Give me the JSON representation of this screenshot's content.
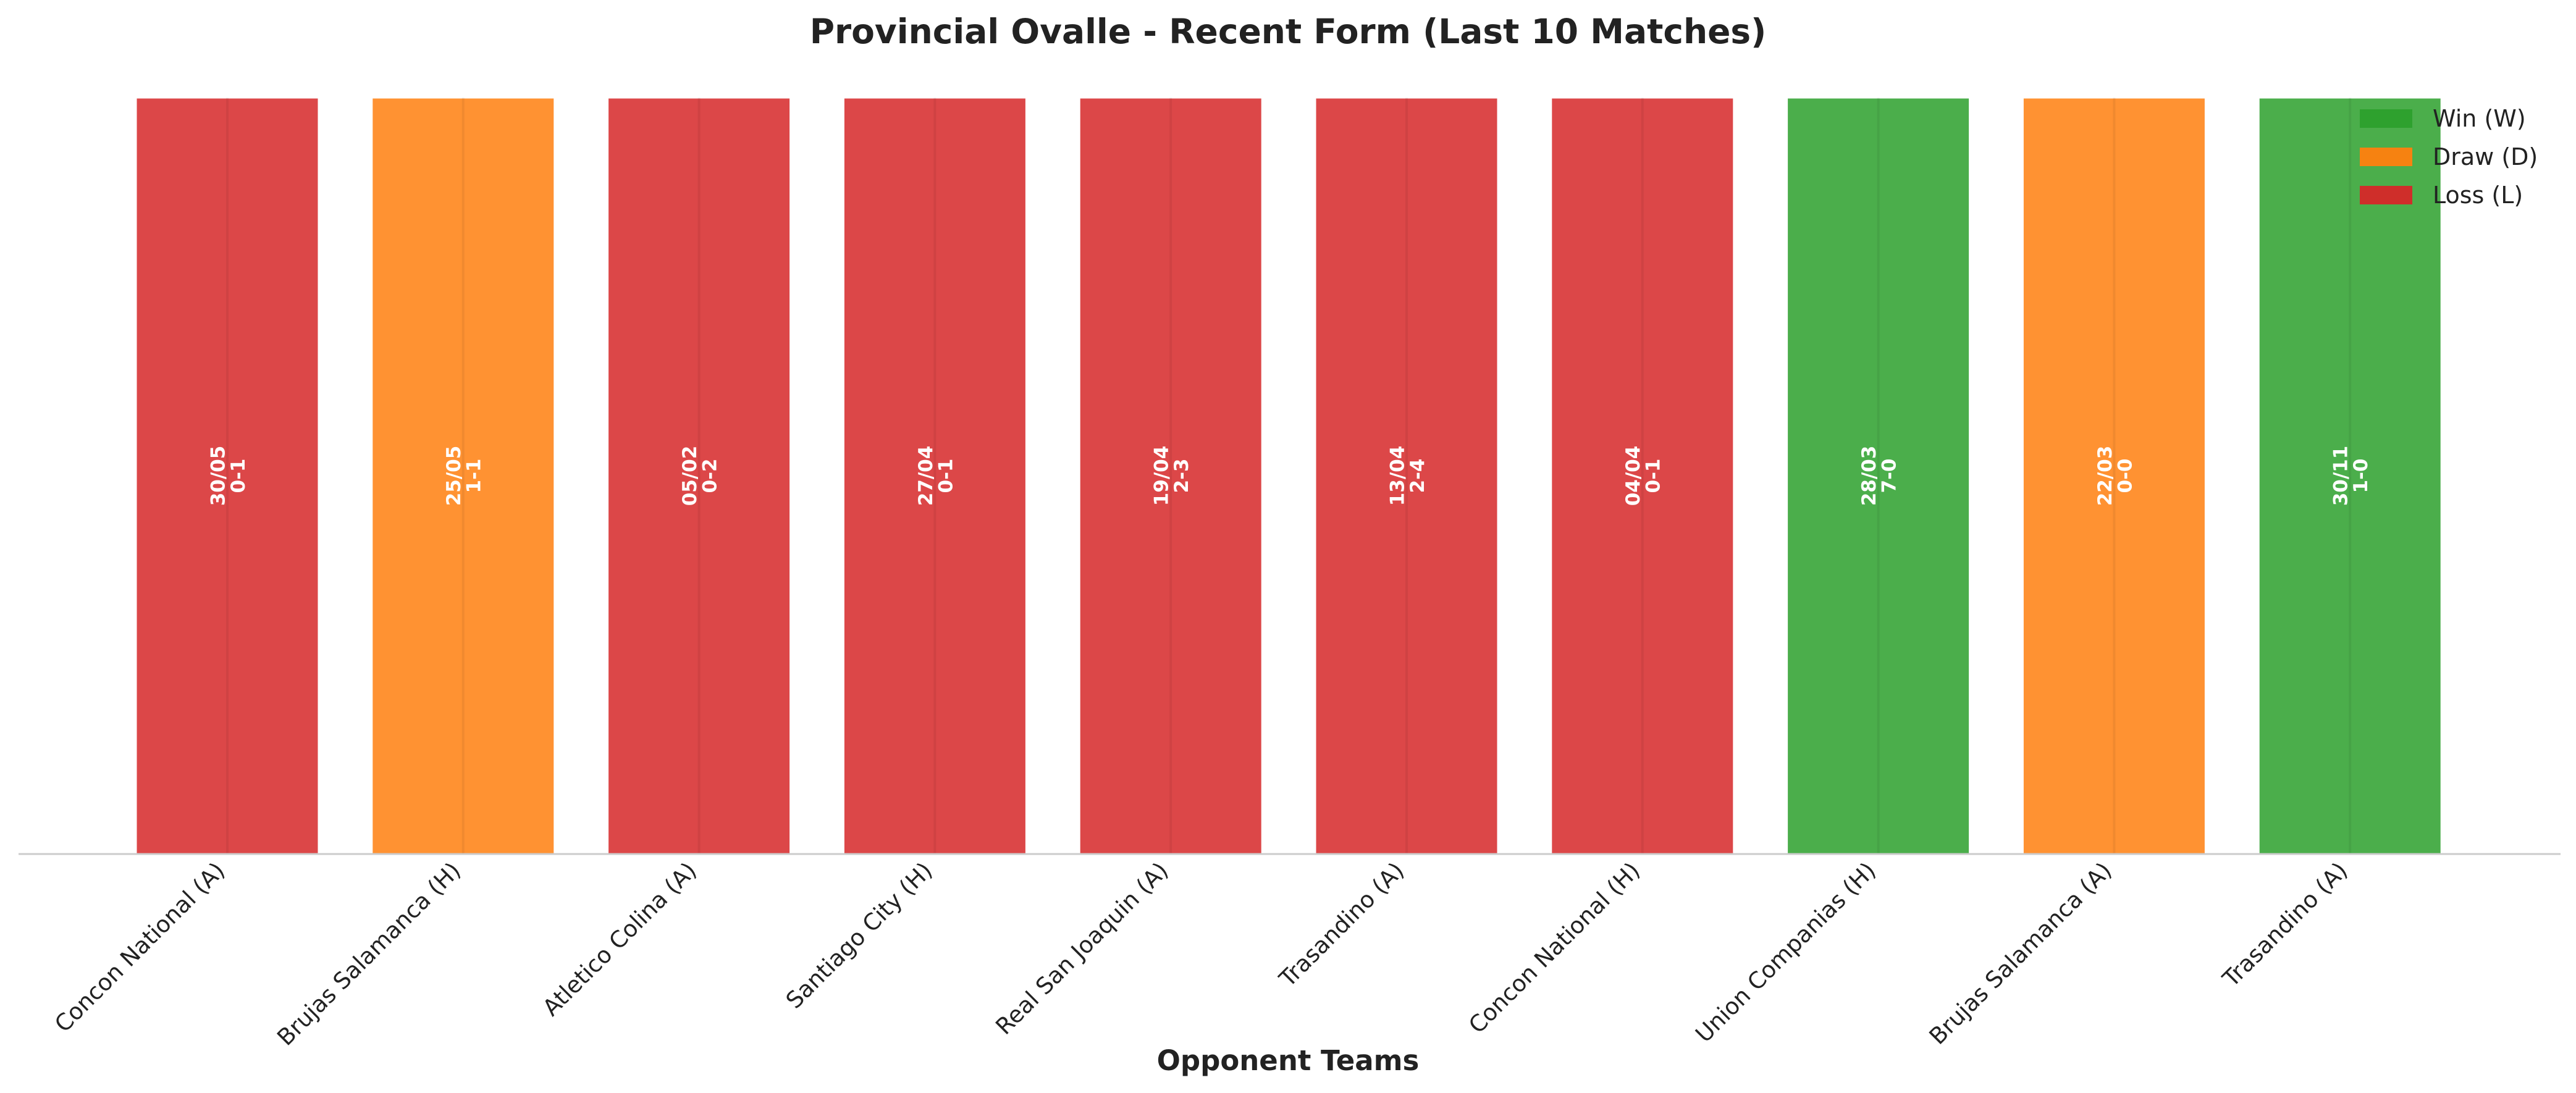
{
  "chart_data": {
    "type": "bar",
    "title": "Provincial Ovalle - Recent Form (Last 10 Matches)",
    "xlabel": "Opponent Teams",
    "ylabel": "",
    "grid": false,
    "legend_position": "top-right",
    "categories": [
      "Concon National (A)",
      "Brujas Salamanca (H)",
      "Atletico Colina (A)",
      "Santiago City (H)",
      "Real San Joaquin (A)",
      "Trasandino (A)",
      "Concon National (H)",
      "Union Companias (H)",
      "Brujas Salamanca (A)",
      "Trasandino (A)"
    ],
    "values": [
      1,
      1,
      1,
      1,
      1,
      1,
      1,
      1,
      1,
      1
    ],
    "results": [
      "L",
      "D",
      "L",
      "L",
      "L",
      "L",
      "L",
      "W",
      "D",
      "W"
    ],
    "dates": [
      "30/05",
      "25/05",
      "05/02",
      "27/04",
      "19/04",
      "13/04",
      "04/04",
      "28/03",
      "22/03",
      "30/11"
    ],
    "scores": [
      "0-1",
      "1-1",
      "0-2",
      "0-1",
      "2-3",
      "2-4",
      "0-1",
      "7-0",
      "0-0",
      "1-0"
    ],
    "legend": [
      {
        "key": "W",
        "label": "Win (W)",
        "color": "#2ca02c"
      },
      {
        "key": "D",
        "label": "Draw (D)",
        "color": "#ff7f0e"
      },
      {
        "key": "L",
        "label": "Loss (L)",
        "color": "#d62728"
      }
    ]
  }
}
